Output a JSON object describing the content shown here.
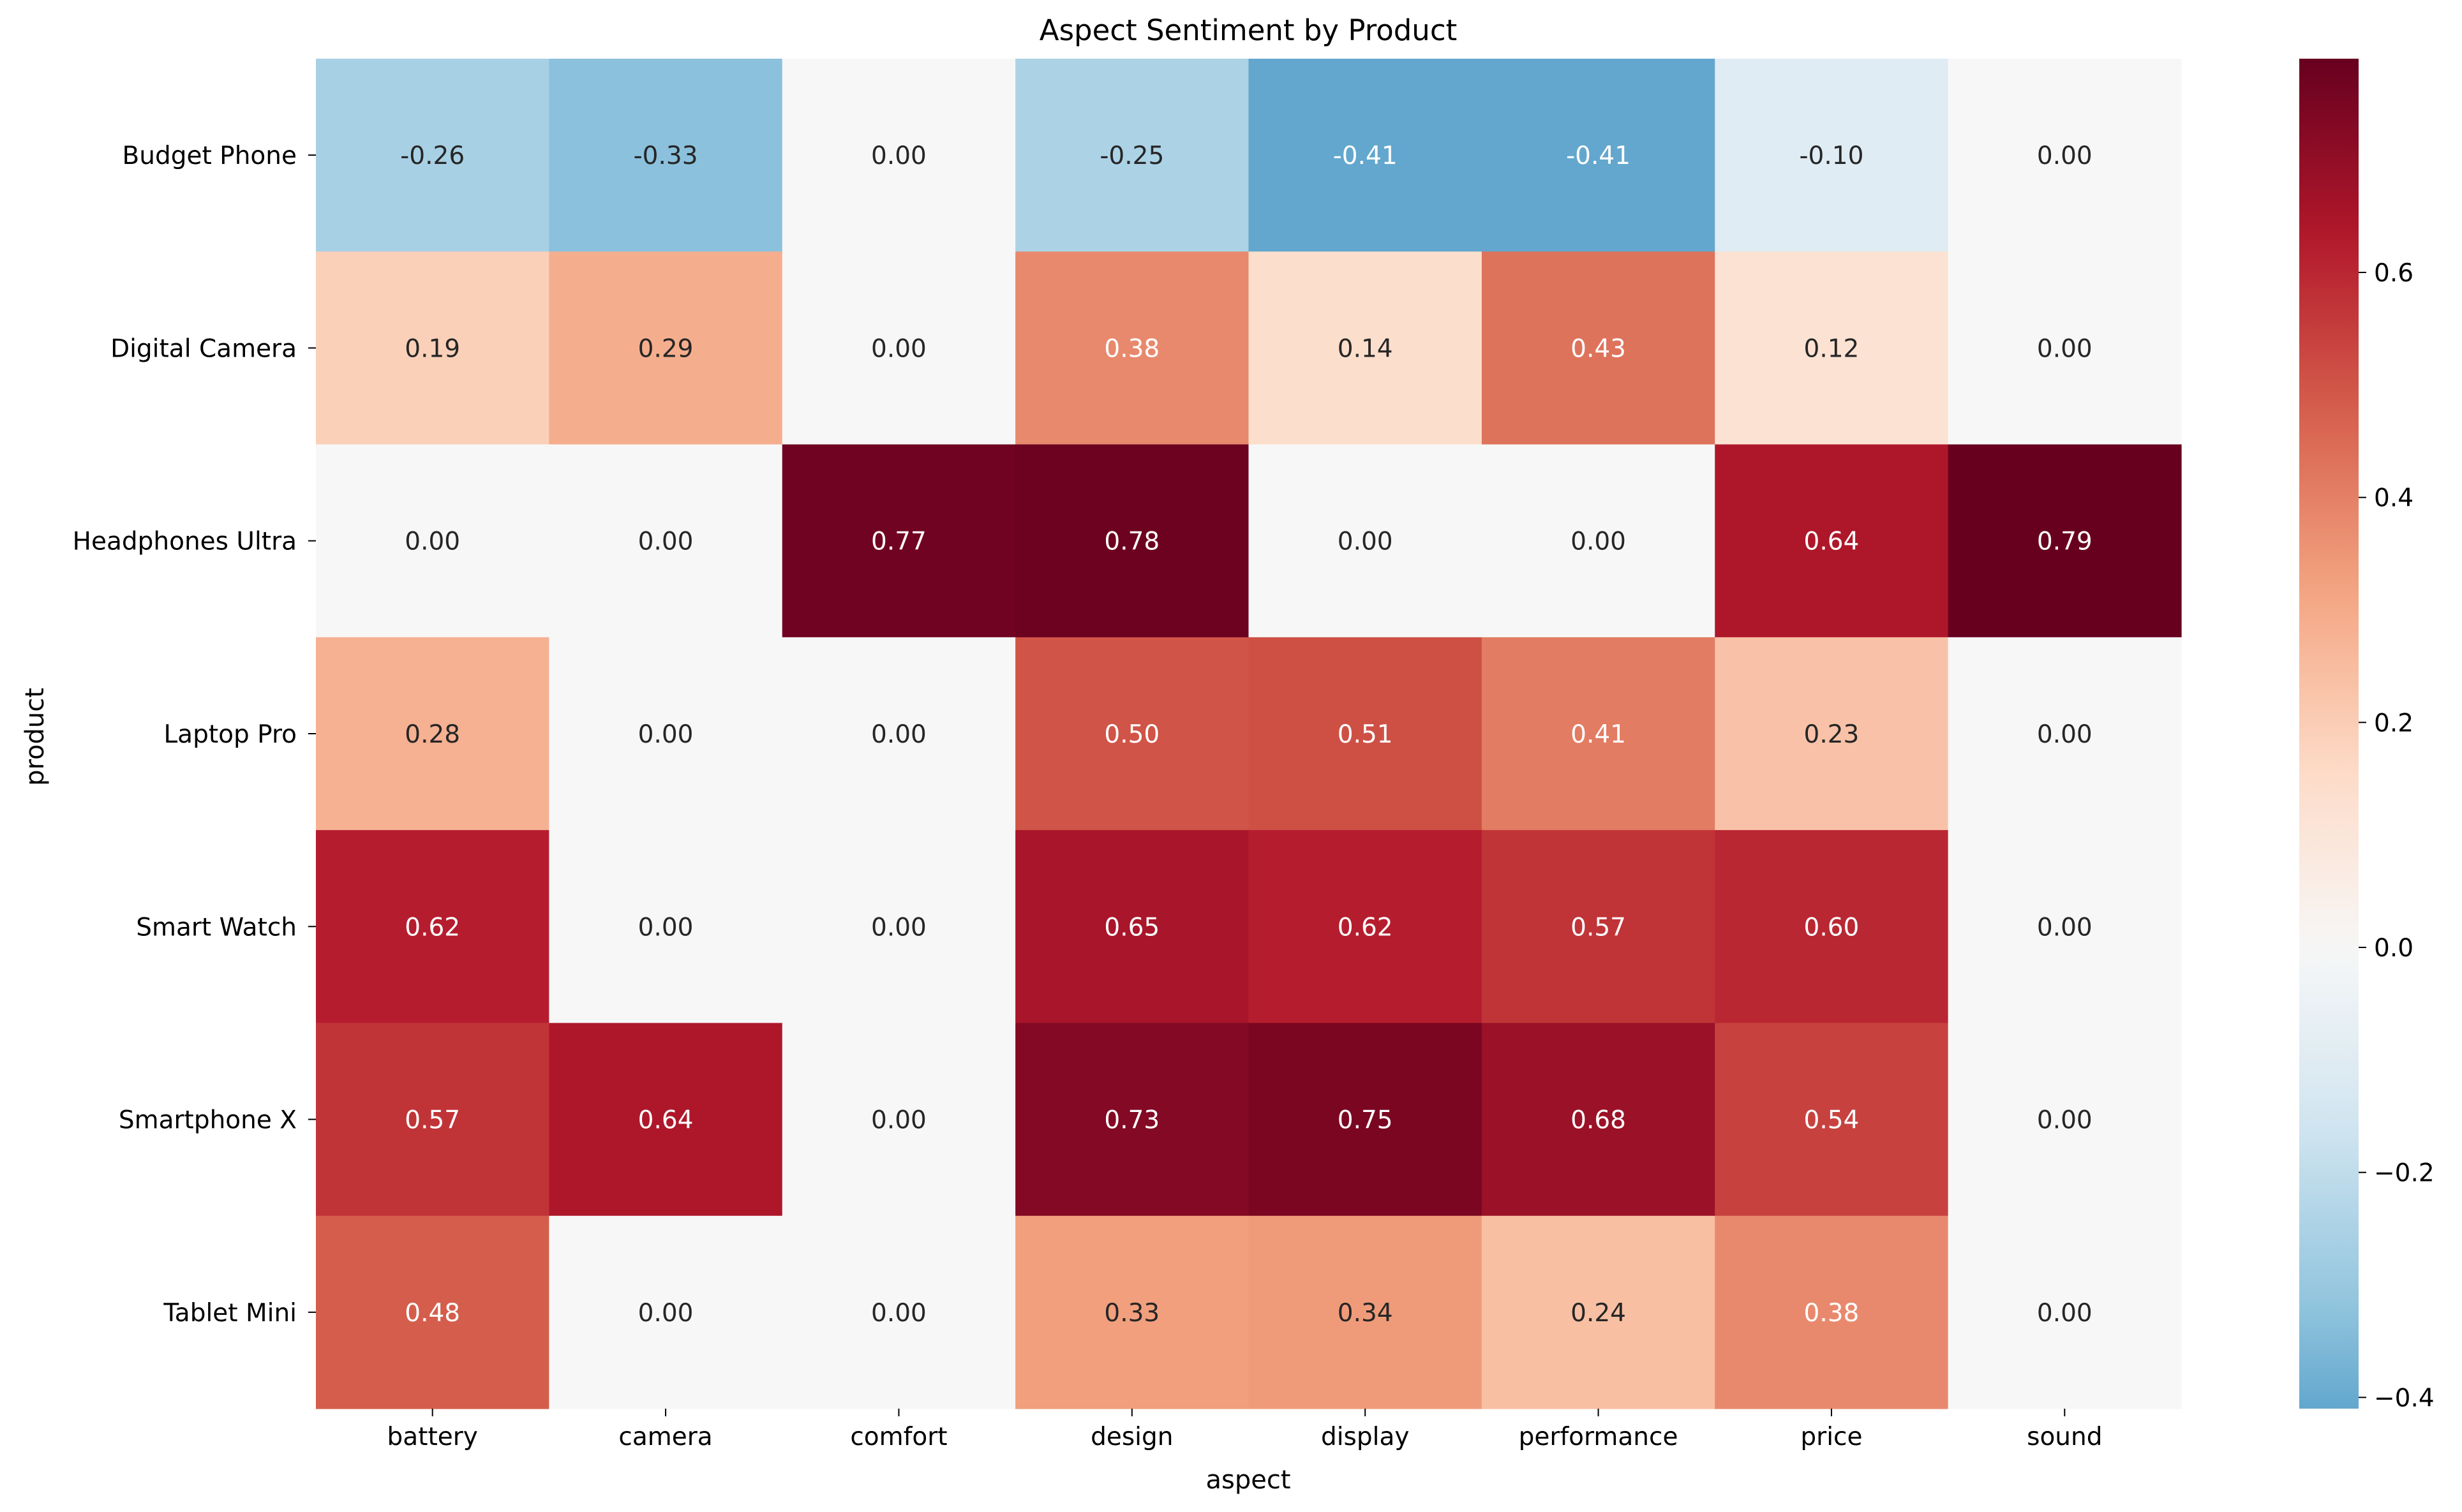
{
  "chart_data": {
    "type": "heatmap",
    "title": "Aspect Sentiment by Product",
    "xlabel": "aspect",
    "ylabel": "product",
    "x_categories": [
      "battery",
      "camera",
      "comfort",
      "design",
      "display",
      "performance",
      "price",
      "sound"
    ],
    "y_categories": [
      "Budget Phone",
      "Digital Camera",
      "Headphones Ultra",
      "Laptop Pro",
      "Smart Watch",
      "Smartphone X",
      "Tablet Mini"
    ],
    "values": [
      [
        -0.26,
        -0.33,
        0.0,
        -0.25,
        -0.41,
        -0.41,
        -0.1,
        0.0
      ],
      [
        0.19,
        0.29,
        0.0,
        0.38,
        0.14,
        0.43,
        0.12,
        0.0
      ],
      [
        0.0,
        0.0,
        0.77,
        0.78,
        0.0,
        0.0,
        0.64,
        0.79
      ],
      [
        0.28,
        0.0,
        0.0,
        0.5,
        0.51,
        0.41,
        0.23,
        0.0
      ],
      [
        0.62,
        0.0,
        0.0,
        0.65,
        0.62,
        0.57,
        0.6,
        0.0
      ],
      [
        0.57,
        0.64,
        0.0,
        0.73,
        0.75,
        0.68,
        0.54,
        0.0
      ],
      [
        0.48,
        0.0,
        0.0,
        0.33,
        0.34,
        0.24,
        0.38,
        0.0
      ]
    ],
    "value_format": "0.00",
    "colormap": "RdBu_r",
    "color_range": [
      -0.41,
      0.79
    ],
    "colorbar_ticks": [
      -0.4,
      -0.2,
      0.0,
      0.2,
      0.4,
      0.6
    ],
    "colorbar_tick_labels": [
      "−0.4",
      "−0.2",
      "0.0",
      "0.2",
      "0.4",
      "0.6"
    ]
  }
}
